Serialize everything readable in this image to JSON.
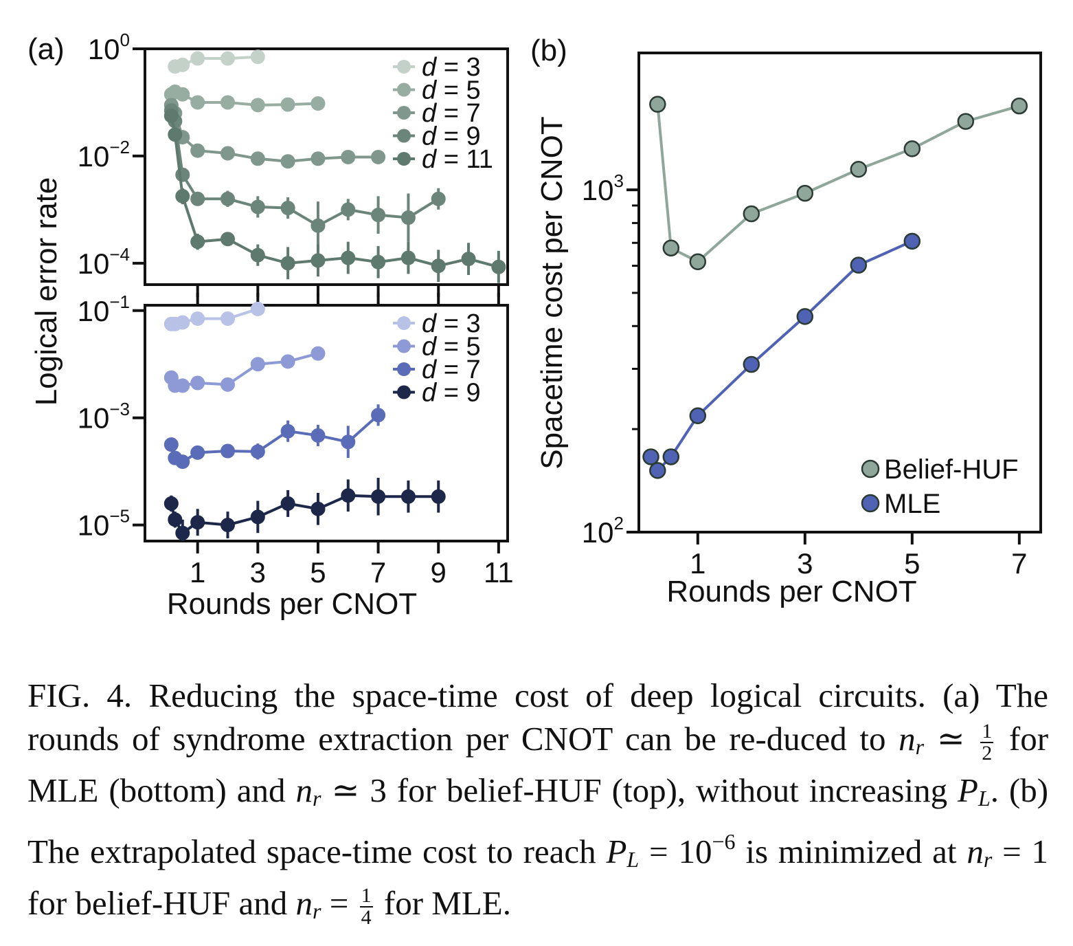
{
  "colors": {
    "huf": [
      "#c3d1c9",
      "#97ada2",
      "#7f978c",
      "#6b857a",
      "#5e796e"
    ],
    "mle": [
      "#b8c2e6",
      "#8d9ad6",
      "#5a6cb8",
      "#1c2749"
    ],
    "beliefHUF": "#8fa69a",
    "mleSummary": "#4f62b3"
  },
  "chart_data": [
    {
      "id": "a-top",
      "panel_label": "(a)",
      "type": "scatter",
      "ylabel": "Logical error rate",
      "yscale": "log",
      "ylim_log10": [
        -4.4,
        0.0
      ],
      "xlim": [
        -0.75,
        11.3
      ],
      "yticks": [
        {
          "label": "10",
          "exp": "0",
          "v": 0
        },
        {
          "label": "10",
          "exp": "−2",
          "v": -2
        },
        {
          "label": "10",
          "exp": "−4",
          "v": -4
        }
      ],
      "xticks": [
        1,
        3,
        5,
        7,
        9,
        11
      ],
      "series": [
        {
          "name": "d = 3",
          "dsym": "d",
          "dval": "= 3",
          "x": [
            0.25,
            0.5,
            1,
            2,
            3
          ],
          "log10_y": [
            -0.33,
            -0.3,
            -0.18,
            -0.18,
            -0.15
          ],
          "err": [
            0,
            0,
            0,
            0,
            0
          ]
        },
        {
          "name": "d = 5",
          "dsym": "d",
          "dval": "= 5",
          "x": [
            0.125,
            0.25,
            0.5,
            1,
            2,
            3,
            4,
            5
          ],
          "log10_y": [
            -0.85,
            -0.8,
            -0.85,
            -1.0,
            -1.0,
            -1.05,
            -1.04,
            -1.02
          ],
          "err": [
            0,
            0,
            0,
            0,
            0,
            0,
            0,
            0
          ]
        },
        {
          "name": "d = 7",
          "dsym": "d",
          "dval": "= 7",
          "x": [
            0.125,
            0.25,
            0.5,
            1,
            2,
            3,
            4,
            5,
            6,
            7
          ],
          "log10_y": [
            -1.05,
            -1.2,
            -1.65,
            -1.9,
            -1.95,
            -2.05,
            -2.1,
            -2.05,
            -2.02,
            -2.02
          ],
          "err": [
            0,
            0,
            0,
            0,
            0,
            0,
            0,
            0,
            0,
            0
          ]
        },
        {
          "name": "d = 9",
          "dsym": "d",
          "dval": "= 9",
          "x": [
            0.125,
            0.25,
            0.5,
            1,
            2,
            3,
            4,
            5,
            6,
            7,
            8,
            9
          ],
          "log10_y": [
            -1.15,
            -1.35,
            -2.35,
            -2.8,
            -2.8,
            -2.95,
            -2.97,
            -3.3,
            -3.0,
            -3.1,
            -3.15,
            -2.8
          ],
          "err": [
            0,
            0,
            0.1,
            0.1,
            0.15,
            0.2,
            0.2,
            0.45,
            0.2,
            0.35,
            0.45,
            0.2
          ]
        },
        {
          "name": "d = 11",
          "dsym": "d",
          "dval": "= 11",
          "x": [
            0.125,
            0.25,
            0.5,
            1,
            2,
            3,
            4,
            5,
            6,
            7,
            8,
            9,
            10,
            11
          ],
          "log10_y": [
            -1.25,
            -1.6,
            -2.75,
            -3.6,
            -3.55,
            -3.85,
            -4.0,
            -3.95,
            -3.9,
            -3.98,
            -3.9,
            -4.05,
            -3.92,
            -4.07
          ],
          "err": [
            0,
            0,
            0.15,
            0.15,
            0.1,
            0.2,
            0.3,
            0.3,
            0.3,
            0.3,
            0.3,
            0.3,
            0.3,
            0.3
          ]
        }
      ]
    },
    {
      "id": "a-bottom",
      "type": "scatter",
      "yscale": "log",
      "ylim_log10": [
        -5.3,
        -0.9
      ],
      "xlim": [
        -0.75,
        11.3
      ],
      "yticks": [
        {
          "label": "10",
          "exp": "−1",
          "v": -1
        },
        {
          "label": "10",
          "exp": "−3",
          "v": -3
        },
        {
          "label": "10",
          "exp": "−5",
          "v": -5
        }
      ],
      "xticks": [
        1,
        3,
        5,
        7,
        9,
        11
      ],
      "xlabel": "Rounds per CNOT",
      "series": [
        {
          "name": "d = 3",
          "dsym": "d",
          "dval": "= 3",
          "x": [
            0.125,
            0.25,
            0.5,
            1,
            2,
            3
          ],
          "log10_y": [
            -1.25,
            -1.25,
            -1.22,
            -1.15,
            -1.15,
            -0.97
          ],
          "err": [
            0,
            0,
            0,
            0,
            0,
            0
          ]
        },
        {
          "name": "d = 5",
          "dsym": "d",
          "dval": "= 5",
          "x": [
            0.125,
            0.25,
            0.5,
            1,
            2,
            3,
            4,
            5
          ],
          "log10_y": [
            -2.25,
            -2.4,
            -2.4,
            -2.35,
            -2.38,
            -2.0,
            -1.95,
            -1.8
          ],
          "err": [
            0,
            0,
            0,
            0,
            0,
            0,
            0,
            0
          ]
        },
        {
          "name": "d = 7",
          "dsym": "d",
          "dval": "= 7",
          "x": [
            0.125,
            0.25,
            0.5,
            1,
            2,
            3,
            4,
            5,
            6,
            7
          ],
          "log10_y": [
            -3.5,
            -3.75,
            -3.82,
            -3.65,
            -3.62,
            -3.63,
            -3.25,
            -3.33,
            -3.45,
            -2.95
          ],
          "err": [
            0,
            0,
            0,
            0,
            0,
            0.15,
            0.2,
            0.2,
            0.3,
            0.2
          ]
        },
        {
          "name": "d = 9",
          "dsym": "d",
          "dval": "= 9",
          "x": [
            0.125,
            0.25,
            0.5,
            1,
            2,
            3,
            4,
            5,
            6,
            7,
            8,
            9
          ],
          "log10_y": [
            -4.6,
            -4.9,
            -5.15,
            -4.95,
            -5.0,
            -4.85,
            -4.6,
            -4.7,
            -4.45,
            -4.47,
            -4.47,
            -4.47
          ],
          "err": [
            0.15,
            0.15,
            0.25,
            0.25,
            0.25,
            0.3,
            0.25,
            0.3,
            0.3,
            0.35,
            0.3,
            0.3
          ]
        }
      ]
    },
    {
      "id": "b",
      "panel_label": "(b)",
      "type": "line",
      "ylabel": "Spacetime cost per CNOT",
      "xlabel": "Rounds per CNOT",
      "yscale": "log",
      "ylim_log10": [
        2.0,
        3.4
      ],
      "xlim": [
        -0.1,
        7.4
      ],
      "yticks": [
        {
          "label": "10",
          "exp": "2",
          "v": 2
        },
        {
          "label": "10",
          "exp": "3",
          "v": 3
        }
      ],
      "xticks": [
        1,
        3,
        5,
        7
      ],
      "legend_location": "lower-right",
      "series": [
        {
          "name": "Belief-HUF",
          "x": [
            0.25,
            0.5,
            1,
            2,
            3,
            4,
            5,
            6,
            7
          ],
          "log10_y": [
            3.25,
            2.83,
            2.79,
            2.93,
            2.99,
            3.06,
            3.12,
            3.2,
            3.245
          ]
        },
        {
          "name": "MLE",
          "x": [
            0.125,
            0.25,
            0.5,
            1,
            2,
            3,
            4,
            5
          ],
          "log10_y": [
            2.22,
            2.18,
            2.22,
            2.34,
            2.49,
            2.63,
            2.78,
            2.85
          ]
        }
      ]
    }
  ],
  "caption": {
    "lead": "FIG. 4.",
    "t1": "Reducing the space-time cost of deep logical circuits. (a) The rounds of syndrome extraction per CNOT can be re-duced to",
    "nr": "n",
    "r_sub": "r",
    "approx": "≃",
    "half_num": "1",
    "half_den": "2",
    "t2": "for MLE (bottom) and",
    "approx3": "≃ 3",
    "t3": "for belief-HUF (top), without increasing",
    "pl": "P",
    "l_sub": "L",
    "t4": ". (b) The extrapolated space-time cost to reach",
    "eq": "= 10",
    "exp": "−6",
    "t5": "is minimized at",
    "eq1": "= 1",
    "t6": "for belief-HUF and",
    "eq2": "=",
    "quarter_num": "1",
    "quarter_den": "4",
    "t7": "for MLE."
  }
}
